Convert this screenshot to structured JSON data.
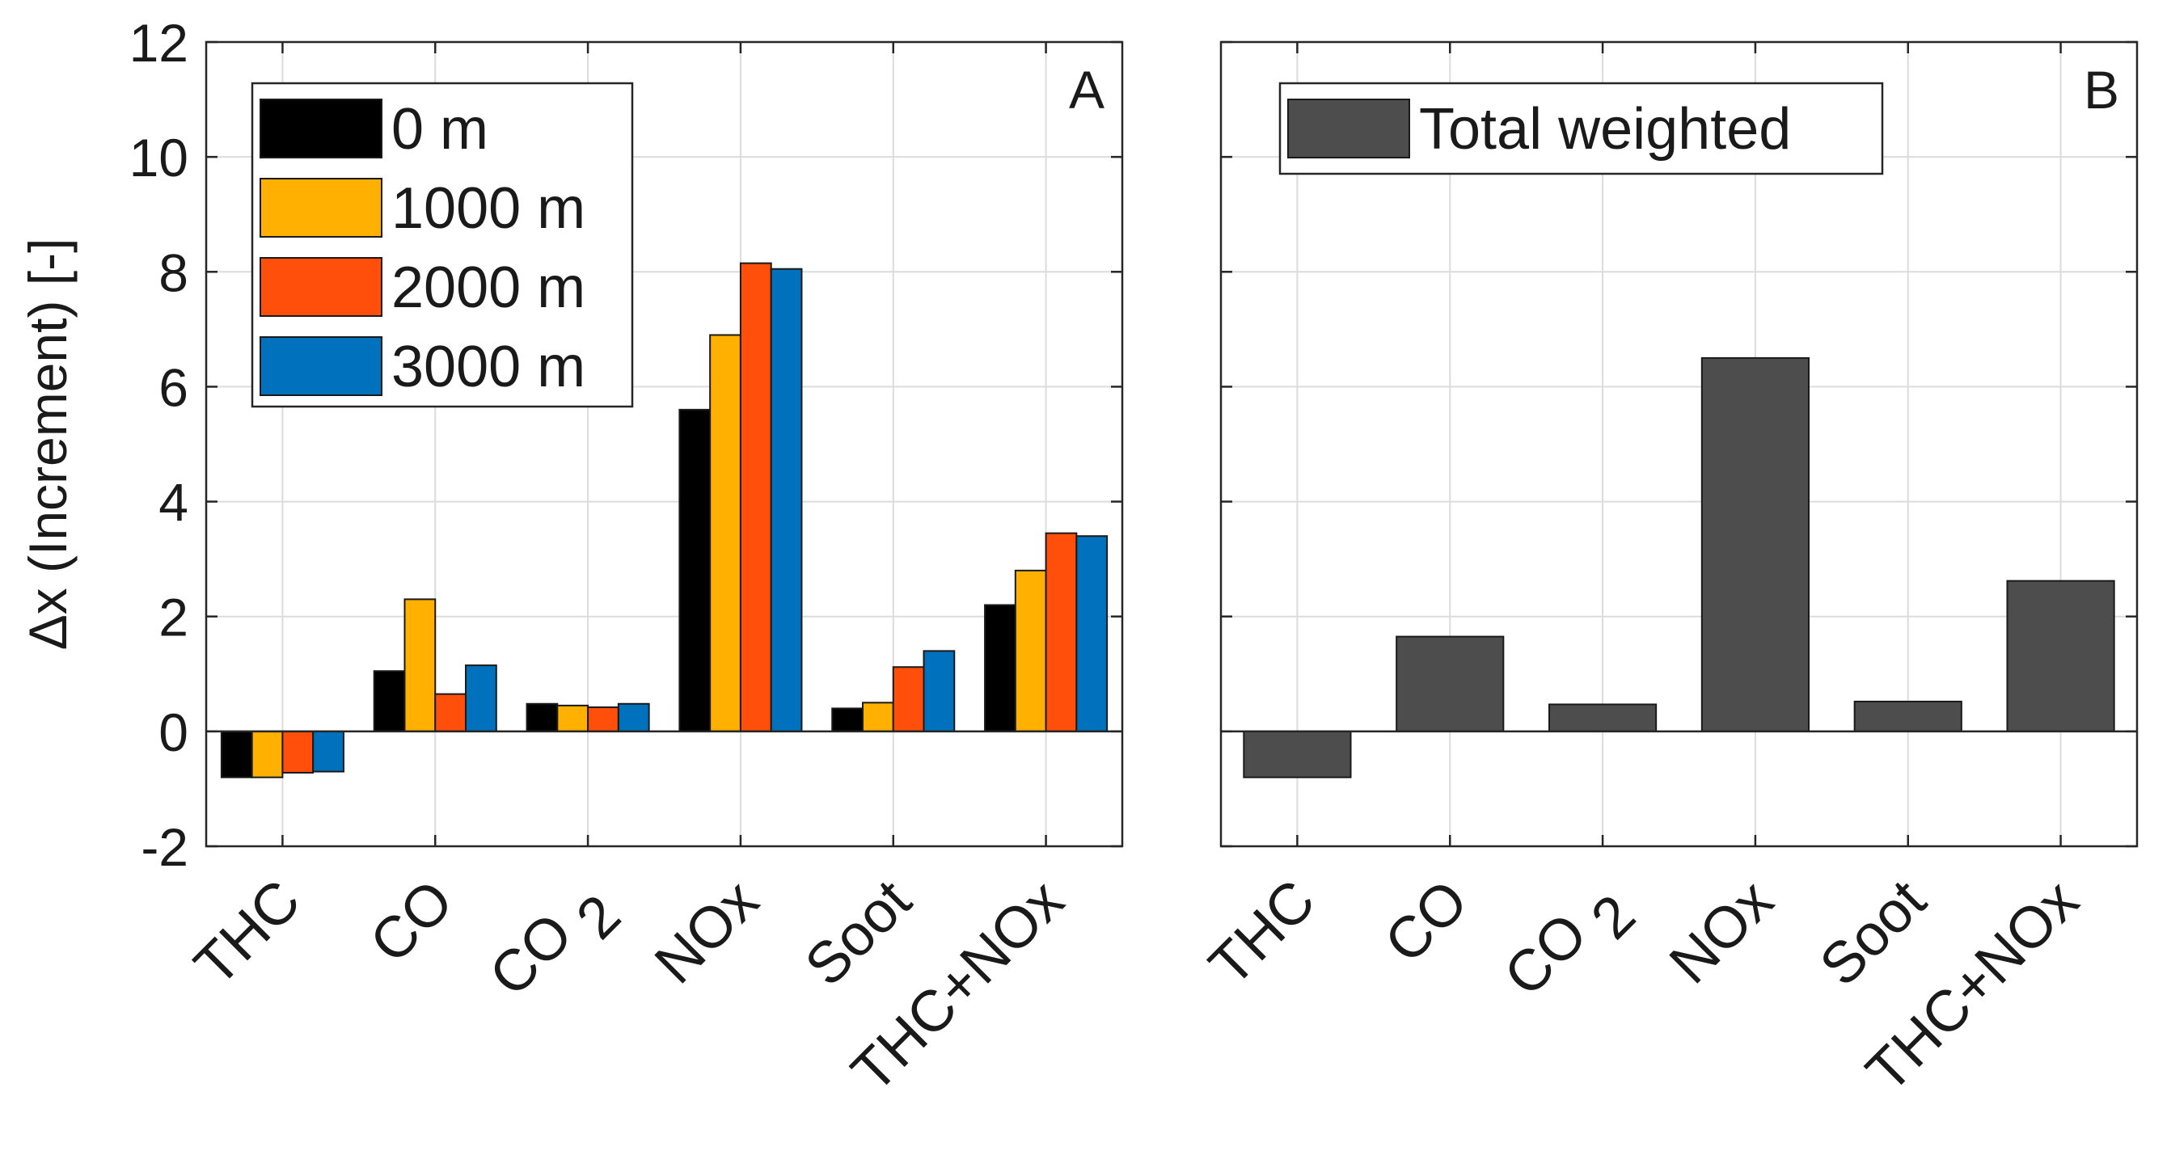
{
  "chart_data": [
    {
      "panel": "A",
      "type": "bar",
      "ylabel": "Δx (Increment) [-]",
      "ylim": [
        -2,
        12
      ],
      "yticks": [
        "-2",
        "0",
        "2",
        "4",
        "6",
        "8",
        "10",
        "12"
      ],
      "ytick_values": [
        -2,
        0,
        2,
        4,
        6,
        8,
        10,
        12
      ],
      "categories": [
        {
          "main": "THC",
          "sub": ""
        },
        {
          "main": "CO",
          "sub": ""
        },
        {
          "main": "CO",
          "sub": "2"
        },
        {
          "main": "NOx",
          "sub": ""
        },
        {
          "main": "Soot",
          "sub": ""
        },
        {
          "main": "THC+NOx",
          "sub": ""
        }
      ],
      "grid": true,
      "legend_position": "top-left",
      "series": [
        {
          "name": "0 m",
          "color": "#000000",
          "values": [
            -0.8,
            1.05,
            0.48,
            5.6,
            0.4,
            2.2
          ]
        },
        {
          "name": "1000 m",
          "color": "#FFB000",
          "values": [
            -0.8,
            2.3,
            0.45,
            6.9,
            0.5,
            2.8
          ]
        },
        {
          "name": "2000 m",
          "color": "#FF4F0A",
          "values": [
            -0.72,
            0.65,
            0.42,
            8.15,
            1.12,
            3.45
          ]
        },
        {
          "name": "3000 m",
          "color": "#0072BD",
          "values": [
            -0.7,
            1.15,
            0.48,
            8.05,
            1.4,
            3.4
          ]
        }
      ]
    },
    {
      "panel": "B",
      "type": "bar",
      "ylim": [
        -2,
        12
      ],
      "categories": [
        {
          "main": "THC",
          "sub": ""
        },
        {
          "main": "CO",
          "sub": ""
        },
        {
          "main": "CO",
          "sub": "2"
        },
        {
          "main": "NOx",
          "sub": ""
        },
        {
          "main": "Soot",
          "sub": ""
        },
        {
          "main": "THC+NOx",
          "sub": ""
        }
      ],
      "grid": true,
      "legend_position": "top-left",
      "series": [
        {
          "name": "Total weighted",
          "color": "#4D4D4D",
          "values": [
            -0.8,
            1.65,
            0.47,
            6.5,
            0.52,
            2.62
          ]
        }
      ]
    }
  ]
}
